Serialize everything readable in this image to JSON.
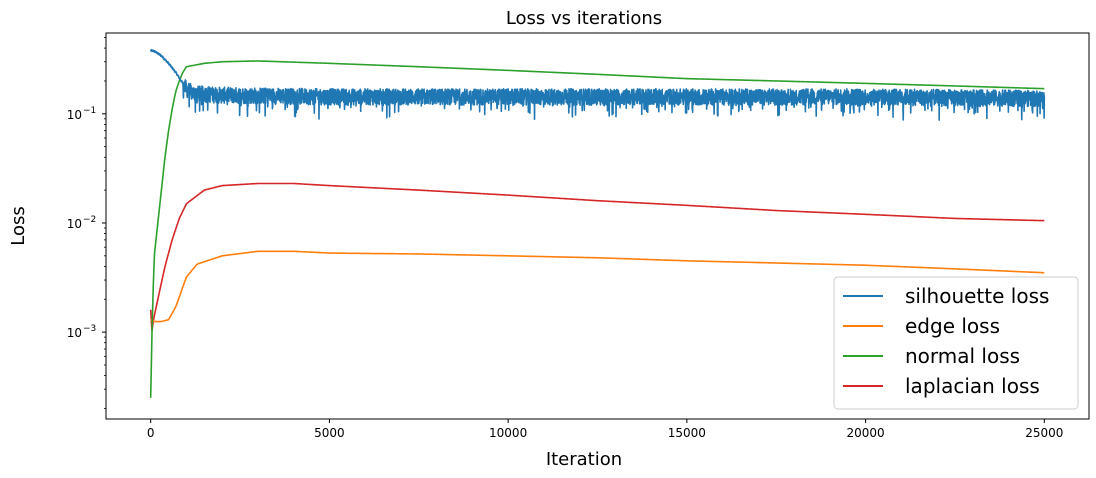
{
  "chart_data": {
    "type": "line",
    "title": "Loss vs iterations",
    "xlabel": "Iteration",
    "ylabel": "Loss",
    "yscale": "log",
    "xlim": [
      -1250,
      26250
    ],
    "ylim": [
      0.00016,
      0.55
    ],
    "x_ticks": [
      0,
      5000,
      10000,
      15000,
      20000,
      25000
    ],
    "y_ticks": [
      {
        "value": 0.001,
        "base": "10",
        "exp": "−3"
      },
      {
        "value": 0.01,
        "base": "10",
        "exp": "−2"
      },
      {
        "value": 0.1,
        "base": "10",
        "exp": "−1"
      }
    ],
    "legend": {
      "loc": "lower right"
    },
    "grid": false,
    "series": [
      {
        "name": "silhouette loss",
        "color": "#1f77b4",
        "noisy": true,
        "x": [
          0,
          100,
          300,
          500,
          700,
          900,
          1000,
          1200,
          2000,
          5000,
          10000,
          15000,
          20000,
          25000
        ],
        "y": [
          0.38,
          0.375,
          0.34,
          0.29,
          0.24,
          0.19,
          0.17,
          0.155,
          0.15,
          0.145,
          0.145,
          0.145,
          0.145,
          0.14
        ]
      },
      {
        "name": "edge loss",
        "color": "#ff7f0e",
        "x": [
          0,
          100,
          300,
          500,
          700,
          1000,
          1300,
          2000,
          3000,
          4000,
          5000,
          7500,
          10000,
          12500,
          15000,
          17500,
          20000,
          22500,
          25000
        ],
        "y": [
          0.0013,
          0.00125,
          0.00125,
          0.0013,
          0.0017,
          0.0032,
          0.0042,
          0.005,
          0.0055,
          0.0055,
          0.0053,
          0.0052,
          0.005,
          0.0048,
          0.0045,
          0.0043,
          0.0041,
          0.0038,
          0.0035
        ]
      },
      {
        "name": "normal loss",
        "color": "#2ca02c",
        "x": [
          0,
          30,
          60,
          100,
          200,
          300,
          400,
          500,
          600,
          700,
          800,
          900,
          1000,
          1500,
          2000,
          3000,
          5000,
          7500,
          10000,
          12500,
          15000,
          17500,
          20000,
          22500,
          25000
        ],
        "y": [
          0.00025,
          0.0008,
          0.002,
          0.005,
          0.01,
          0.02,
          0.04,
          0.07,
          0.11,
          0.16,
          0.2,
          0.24,
          0.27,
          0.29,
          0.3,
          0.305,
          0.29,
          0.27,
          0.25,
          0.23,
          0.21,
          0.2,
          0.19,
          0.18,
          0.17
        ]
      },
      {
        "name": "laplacian loss",
        "color": "#d62728",
        "x": [
          0,
          30,
          60,
          100,
          200,
          400,
          600,
          800,
          1000,
          1500,
          2000,
          3000,
          4000,
          5000,
          7500,
          10000,
          12500,
          15000,
          17500,
          20000,
          22500,
          25000
        ],
        "y": [
          0.0016,
          0.001,
          0.0012,
          0.0014,
          0.002,
          0.004,
          0.007,
          0.011,
          0.015,
          0.02,
          0.022,
          0.023,
          0.023,
          0.022,
          0.02,
          0.018,
          0.016,
          0.0145,
          0.013,
          0.012,
          0.011,
          0.0105
        ]
      }
    ]
  }
}
